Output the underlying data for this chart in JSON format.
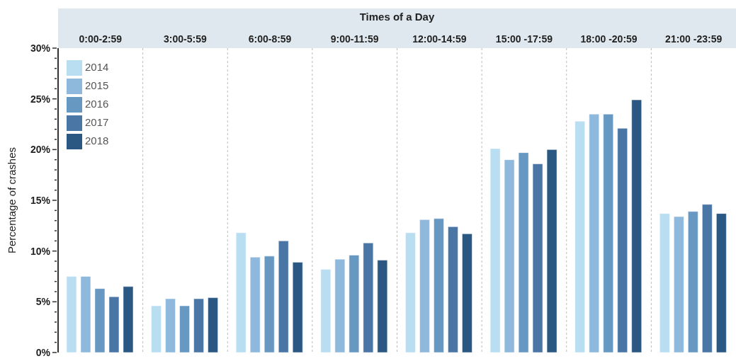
{
  "chart_data": {
    "type": "bar",
    "xlabel": "Times of a Day",
    "ylabel": "Percentage of crashes",
    "categories": [
      "0:00-2:59",
      "3:00-5:59",
      "6:00-8:59",
      "9:00-11:59",
      "12:00-14:59",
      "15:00 -17:59",
      "18:00 -20:59",
      "21:00 -23:59"
    ],
    "series": [
      {
        "name": "2014",
        "color": "#b9ddf1",
        "values": [
          7.5,
          4.6,
          11.8,
          8.2,
          11.8,
          20.1,
          22.8,
          13.7
        ]
      },
      {
        "name": "2015",
        "color": "#8fb9dc",
        "values": [
          7.5,
          5.3,
          9.4,
          9.2,
          13.1,
          19.0,
          23.5,
          13.4
        ]
      },
      {
        "name": "2016",
        "color": "#6798c2",
        "values": [
          6.3,
          4.6,
          9.5,
          9.6,
          13.2,
          19.7,
          23.5,
          13.9
        ]
      },
      {
        "name": "2017",
        "color": "#4a76a5",
        "values": [
          5.5,
          5.3,
          11.0,
          10.8,
          12.4,
          18.6,
          22.1,
          14.6
        ]
      },
      {
        "name": "2018",
        "color": "#2b5783",
        "values": [
          6.5,
          5.4,
          8.9,
          9.1,
          11.7,
          20.0,
          24.9,
          13.7
        ]
      }
    ],
    "ylim": [
      0,
      30
    ],
    "yticks": [
      {
        "value": 0,
        "label": "0%"
      },
      {
        "value": 1,
        "label": null
      },
      {
        "value": 2,
        "label": null
      },
      {
        "value": 3,
        "label": null
      },
      {
        "value": 4,
        "label": null
      },
      {
        "value": 5,
        "label": "5%"
      },
      {
        "value": 6,
        "label": null
      },
      {
        "value": 7,
        "label": null
      },
      {
        "value": 8,
        "label": null
      },
      {
        "value": 9,
        "label": null
      },
      {
        "value": 10,
        "label": "10%"
      },
      {
        "value": 11,
        "label": null
      },
      {
        "value": 12,
        "label": null
      },
      {
        "value": 13,
        "label": null
      },
      {
        "value": 14,
        "label": null
      },
      {
        "value": 15,
        "label": "15%"
      },
      {
        "value": 16,
        "label": null
      },
      {
        "value": 17,
        "label": null
      },
      {
        "value": 18,
        "label": null
      },
      {
        "value": 19,
        "label": null
      },
      {
        "value": 20,
        "label": "20%"
      },
      {
        "value": 21,
        "label": null
      },
      {
        "value": 22,
        "label": null
      },
      {
        "value": 23,
        "label": null
      },
      {
        "value": 24,
        "label": null
      },
      {
        "value": 25,
        "label": "25%"
      },
      {
        "value": 26,
        "label": null
      },
      {
        "value": 27,
        "label": null
      },
      {
        "value": 28,
        "label": null
      },
      {
        "value": 29,
        "label": null
      },
      {
        "value": 30,
        "label": "30%"
      }
    ],
    "grid": "x",
    "legend": "top left"
  }
}
